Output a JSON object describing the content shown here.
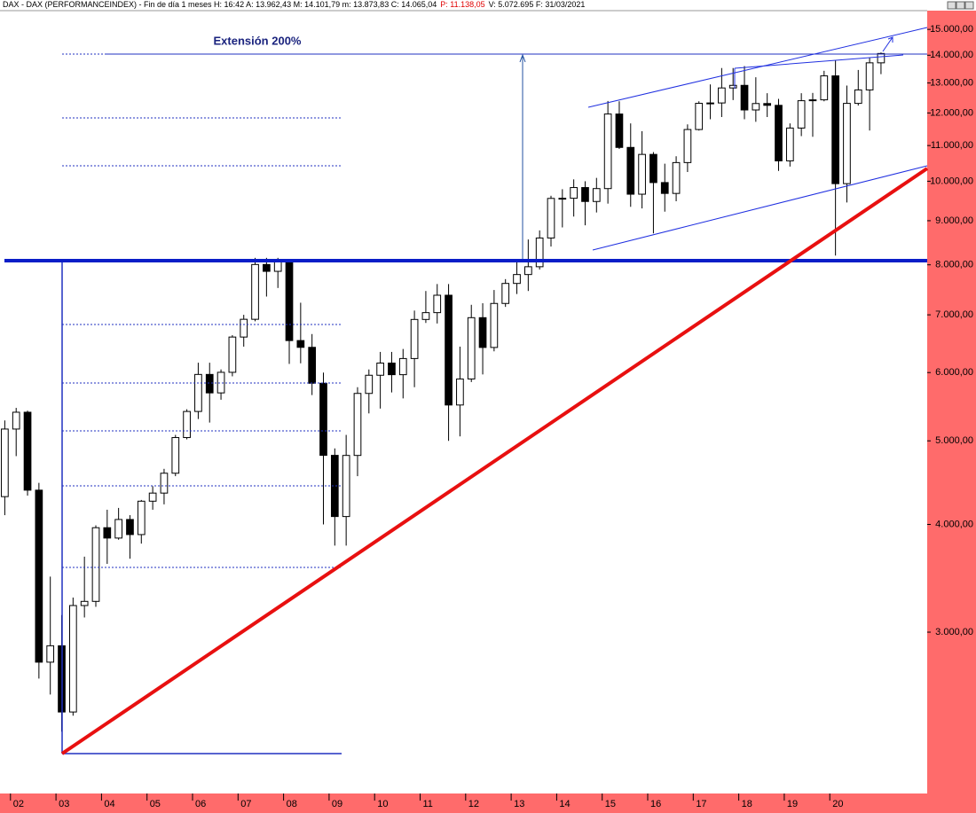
{
  "chart_data": {
    "type": "candlestick",
    "header_text": "DAX - DAX (PERFORMANCEINDEX) - Fin de día 1 meses  H: 16:42  A: 13.962,43  M: 14.101,79  m: 13.873,83  C: 14.065,04",
    "header_highlight": "P: 11.138,05",
    "header_tail": "V: 5.072.695  F: 31/03/2021",
    "annotation": "Extensión 200%",
    "log_scale": true,
    "up_color": "#ffffff",
    "down_color": "#000000",
    "x": [
      2001.875,
      2002.125,
      2002.375,
      2002.625,
      2002.875,
      2003.125,
      2003.375,
      2003.625,
      2003.875,
      2004.125,
      2004.375,
      2004.625,
      2004.875,
      2005.125,
      2005.375,
      2005.625,
      2005.875,
      2006.125,
      2006.375,
      2006.625,
      2006.875,
      2007.125,
      2007.375,
      2007.625,
      2007.875,
      2008.125,
      2008.375,
      2008.625,
      2008.875,
      2009.125,
      2009.375,
      2009.625,
      2009.875,
      2010.125,
      2010.375,
      2010.625,
      2010.875,
      2011.125,
      2011.375,
      2011.625,
      2011.875,
      2012.125,
      2012.375,
      2012.625,
      2012.875,
      2013.125,
      2013.375,
      2013.625,
      2013.875,
      2014.125,
      2014.375,
      2014.625,
      2014.875,
      2015.125,
      2015.375,
      2015.625,
      2015.875,
      2016.125,
      2016.375,
      2016.625,
      2016.875,
      2017.125,
      2017.375,
      2017.625,
      2017.875,
      2018.125,
      2018.375,
      2018.625,
      2018.875,
      2019.125,
      2019.375,
      2019.625,
      2019.875,
      2020.125,
      2020.375,
      2020.625,
      2020.875,
      2021.125
    ],
    "open": [
      4308,
      5160,
      5397,
      4383,
      2769,
      2893,
      2424,
      3221,
      3257,
      3965,
      3857,
      4053,
      3893,
      4256,
      4349,
      4586,
      5044,
      5408,
      5970,
      5683,
      6004,
      6597,
      6917,
      8007,
      7862,
      8067,
      6535,
      6418,
      5831,
      4810,
      4085,
      4809,
      5675,
      5957,
      6154,
      5966,
      6229,
      6914,
      7041,
      7376,
      5502,
      5898,
      6947,
      6416,
      7216,
      7612,
      7795,
      7959,
      8594,
      9552,
      9556,
      9833,
      9474,
      9806,
      11966,
      10945,
      9660,
      10743,
      9965,
      9680,
      10511,
      11481,
      12313,
      12325,
      12829,
      12918,
      12097,
      12306,
      12247,
      10559,
      11526,
      12399,
      12428,
      13249,
      9936,
      12311,
      12761,
      13719
    ],
    "high": [
      5280,
      5460,
      5420,
      4470,
      3480,
      3140,
      3290,
      3670,
      3990,
      4160,
      4180,
      4100,
      4270,
      4430,
      4640,
      5080,
      5440,
      6160,
      6160,
      6050,
      6630,
      7000,
      8150,
      8150,
      8150,
      8100,
      7230,
      6650,
      6000,
      4900,
      5080,
      5770,
      6050,
      6340,
      6340,
      6390,
      7080,
      7460,
      7600,
      7600,
      6430,
      7190,
      7220,
      7480,
      7700,
      8080,
      8560,
      8770,
      9620,
      9790,
      10050,
      10000,
      10090,
      12390,
      12380,
      11670,
      11430,
      10810,
      10480,
      10690,
      11640,
      12380,
      12950,
      13530,
      13530,
      13600,
      13200,
      12650,
      12460,
      11670,
      12650,
      12660,
      13430,
      13800,
      12910,
      13460,
      13900,
      14102
    ],
    "low": [
      4100,
      4800,
      4320,
      2650,
      2540,
      2300,
      2400,
      3120,
      3210,
      3600,
      3840,
      3650,
      3800,
      4160,
      4220,
      4550,
      5020,
      5300,
      5250,
      5580,
      5940,
      6430,
      6880,
      7350,
      7520,
      6140,
      6150,
      5650,
      4000,
      3780,
      3780,
      4550,
      5380,
      5450,
      5690,
      5600,
      5770,
      6850,
      6840,
      5000,
      5060,
      5850,
      5970,
      6350,
      7150,
      7400,
      7460,
      7900,
      8400,
      8840,
      9100,
      8890,
      9200,
      9420,
      10900,
      9340,
      9300,
      8700,
      9220,
      9480,
      10250,
      11450,
      11800,
      11870,
      12420,
      11800,
      11720,
      11870,
      10280,
      10400,
      11280,
      11260,
      12380,
      8200,
      9450,
      12240,
      11450,
      13310
    ],
    "close": [
      5160,
      5397,
      4383,
      2769,
      2893,
      2424,
      3221,
      3257,
      3965,
      3857,
      4053,
      3893,
      4256,
      4349,
      4586,
      5044,
      5408,
      5970,
      5683,
      6004,
      6597,
      6917,
      8007,
      7862,
      8067,
      6535,
      6418,
      5831,
      4810,
      4085,
      4809,
      5675,
      5957,
      6154,
      5966,
      6229,
      6914,
      7041,
      7376,
      5502,
      5898,
      6947,
      6416,
      7216,
      7612,
      7795,
      7959,
      8594,
      9552,
      9556,
      9833,
      9474,
      9806,
      11966,
      10945,
      9660,
      10743,
      9965,
      9680,
      10511,
      11481,
      12313,
      12325,
      12829,
      12918,
      12097,
      12306,
      12247,
      10559,
      11526,
      12399,
      12428,
      13249,
      9936,
      12311,
      12761,
      13719,
      14065
    ],
    "xlim": [
      2001.77,
      2022.14
    ],
    "xticks": [
      {
        "value": 2002,
        "label": "02"
      },
      {
        "value": 2003,
        "label": "03"
      },
      {
        "value": 2004,
        "label": "04"
      },
      {
        "value": 2005,
        "label": "05"
      },
      {
        "value": 2006,
        "label": "06"
      },
      {
        "value": 2007,
        "label": "07"
      },
      {
        "value": 2008,
        "label": "08"
      },
      {
        "value": 2009,
        "label": "09"
      },
      {
        "value": 2010,
        "label": "10"
      },
      {
        "value": 2011,
        "label": "11"
      },
      {
        "value": 2012,
        "label": "12"
      },
      {
        "value": 2013,
        "label": "13"
      },
      {
        "value": 2014,
        "label": "14"
      },
      {
        "value": 2015,
        "label": "15"
      },
      {
        "value": 2016,
        "label": "16"
      },
      {
        "value": 2017,
        "label": "17"
      },
      {
        "value": 2018,
        "label": "18"
      },
      {
        "value": 2019,
        "label": "19"
      },
      {
        "value": 2020,
        "label": "20"
      }
    ],
    "ylim": [
      1950,
      15770
    ],
    "yticks": [
      {
        "value": 3000,
        "label": "3.000,00"
      },
      {
        "value": 4000,
        "label": "4.000,00"
      },
      {
        "value": 5000,
        "label": "5.000,00"
      },
      {
        "value": 6000,
        "label": "6.000,00"
      },
      {
        "value": 7000,
        "label": "7.000,00"
      },
      {
        "value": 8000,
        "label": "8.000,00"
      },
      {
        "value": 9000,
        "label": "9.000,00"
      },
      {
        "value": 10000,
        "label": "10.000,00"
      },
      {
        "value": 11000,
        "label": "11.000,00"
      },
      {
        "value": 12000,
        "label": "12.000,00"
      },
      {
        "value": 13000,
        "label": "13.000,00"
      },
      {
        "value": 14000,
        "label": "14.000,00"
      },
      {
        "value": 15000,
        "label": "15.000,00"
      }
    ]
  }
}
